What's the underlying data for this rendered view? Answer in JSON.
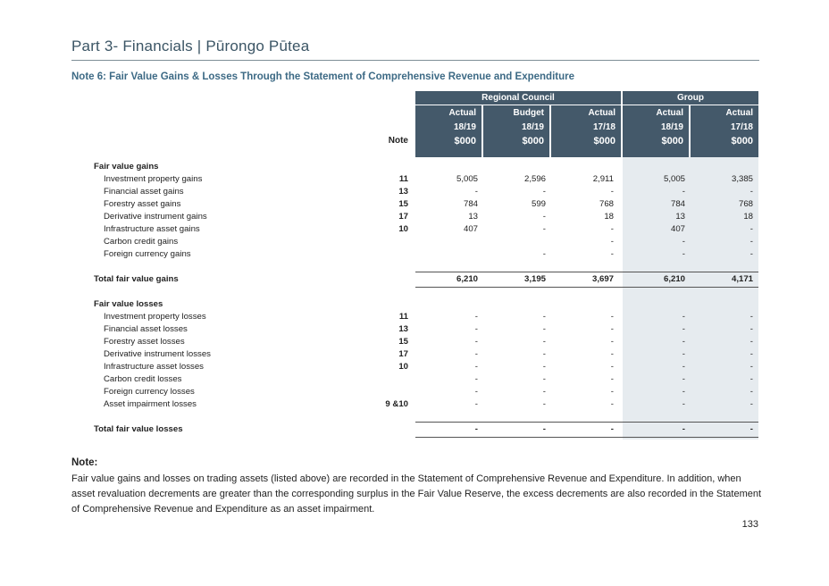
{
  "header": {
    "title": "Part 3- Financials | Pūrongo Pūtea"
  },
  "note_title": "Note 6:  Fair Value Gains & Losses Through the Statement of Comprehensive Revenue and Expenditure",
  "table": {
    "group_headers": [
      "Regional Council",
      "Group"
    ],
    "column_types": [
      "Actual",
      "Budget",
      "Actual",
      "Actual",
      "Actual"
    ],
    "column_years": [
      "18/19",
      "18/19",
      "17/18",
      "18/19",
      "17/18"
    ],
    "column_units": [
      "$000",
      "$000",
      "$000",
      "$000",
      "$000"
    ],
    "note_label": "Note",
    "gains_heading": "Fair value gains",
    "gains": [
      {
        "label": "Investment property gains",
        "note": "11",
        "values": [
          "5,005",
          "2,596",
          "2,911",
          "5,005",
          "3,385"
        ]
      },
      {
        "label": "Financial asset gains",
        "note": "13",
        "values": [
          "-",
          "-",
          "-",
          "-",
          "-"
        ]
      },
      {
        "label": "Forestry asset gains",
        "note": "15",
        "values": [
          "784",
          "599",
          "768",
          "784",
          "768"
        ]
      },
      {
        "label": "Derivative instrument gains",
        "note": "17",
        "values": [
          "13",
          "-",
          "18",
          "13",
          "18"
        ]
      },
      {
        "label": "Infrastructure asset gains",
        "note": "10",
        "values": [
          "407",
          "-",
          "-",
          "407",
          "-"
        ]
      },
      {
        "label": "Carbon credit gains",
        "note": "",
        "values": [
          "",
          "",
          "-",
          "-",
          "-"
        ]
      },
      {
        "label": "Foreign currency gains",
        "note": "",
        "values": [
          "",
          "-",
          "-",
          "-",
          "-"
        ]
      }
    ],
    "total_gains": {
      "label": "Total fair value gains",
      "values": [
        "6,210",
        "3,195",
        "3,697",
        "6,210",
        "4,171"
      ]
    },
    "losses_heading": "Fair value losses",
    "losses": [
      {
        "label": "Investment property losses",
        "note": "11",
        "values": [
          "-",
          "-",
          "-",
          "-",
          "-"
        ]
      },
      {
        "label": "Financial asset losses",
        "note": "13",
        "values": [
          "-",
          "-",
          "-",
          "-",
          "-"
        ]
      },
      {
        "label": "Forestry asset losses",
        "note": "15",
        "values": [
          "-",
          "-",
          "-",
          "-",
          "-"
        ]
      },
      {
        "label": "Derivative instrument losses",
        "note": "17",
        "values": [
          "-",
          "-",
          "-",
          "-",
          "-"
        ]
      },
      {
        "label": "Infrastructure asset losses",
        "note": "10",
        "values": [
          "-",
          "-",
          "-",
          "-",
          "-"
        ]
      },
      {
        "label": "Carbon credit losses",
        "note": "",
        "values": [
          "-",
          "-",
          "-",
          "-",
          "-"
        ]
      },
      {
        "label": "Foreign currency losses",
        "note": "",
        "values": [
          "-",
          "-",
          "-",
          "-",
          "-"
        ]
      },
      {
        "label": "Asset impairment losses",
        "note": "9 &10",
        "values": [
          "-",
          "-",
          "-",
          "-",
          "-"
        ]
      }
    ],
    "total_losses": {
      "label": "Total fair value losses",
      "values": [
        "-",
        "-",
        "-",
        "-",
        "-"
      ]
    }
  },
  "note": {
    "heading": "Note:",
    "body": "Fair value gains and losses on trading assets (listed above) are recorded in the Statement of Comprehensive Revenue and Expenditure.  In addition, when asset revaluation decrements are greater than the corresponding surplus in the Fair Value Reserve, the excess decrements are also recorded in the Statement of Comprehensive Revenue and Expenditure as an asset impairment."
  },
  "page_number": "133",
  "colors": {
    "header_fill": "#44596a",
    "title_text": "#3b5565",
    "note_title_text": "#3d6a85",
    "group_shade": "#e6ebef"
  }
}
